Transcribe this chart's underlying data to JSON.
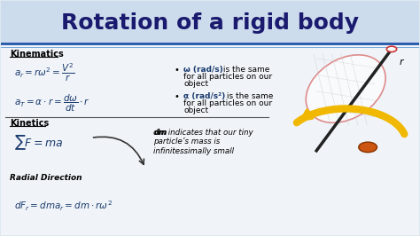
{
  "title": "Rotation of a rigid body",
  "title_color": "#1a1a6e",
  "title_fontsize": 18,
  "header_line_color": "#2255aa",
  "section1_label": "Kinematics",
  "section2_label": "Kinetics",
  "section3_label": "Radial Direction",
  "eq1": "$a_r = r\\omega^2 = \\dfrac{V^2}{r}$",
  "eq2": "$a_T = \\alpha \\cdot r = \\dfrac{d\\omega}{dt} \\cdot r$",
  "eq3": "$\\sum F = ma$",
  "eq4": "$dF_r = dma_r = dm \\cdot r\\omega^2$",
  "dm_text": "dm indicates that our tiny\nparticle’s mass is\ninfinitessimally small",
  "label_color": "#000000",
  "divider_color": "#555555",
  "eq_color": "#1a3a6e",
  "bullet_bold_color": "#1a3a6e",
  "header_bg": "#cddcec",
  "body_bg": "#f0f4f8",
  "yellow_arrow": "#f0b800"
}
